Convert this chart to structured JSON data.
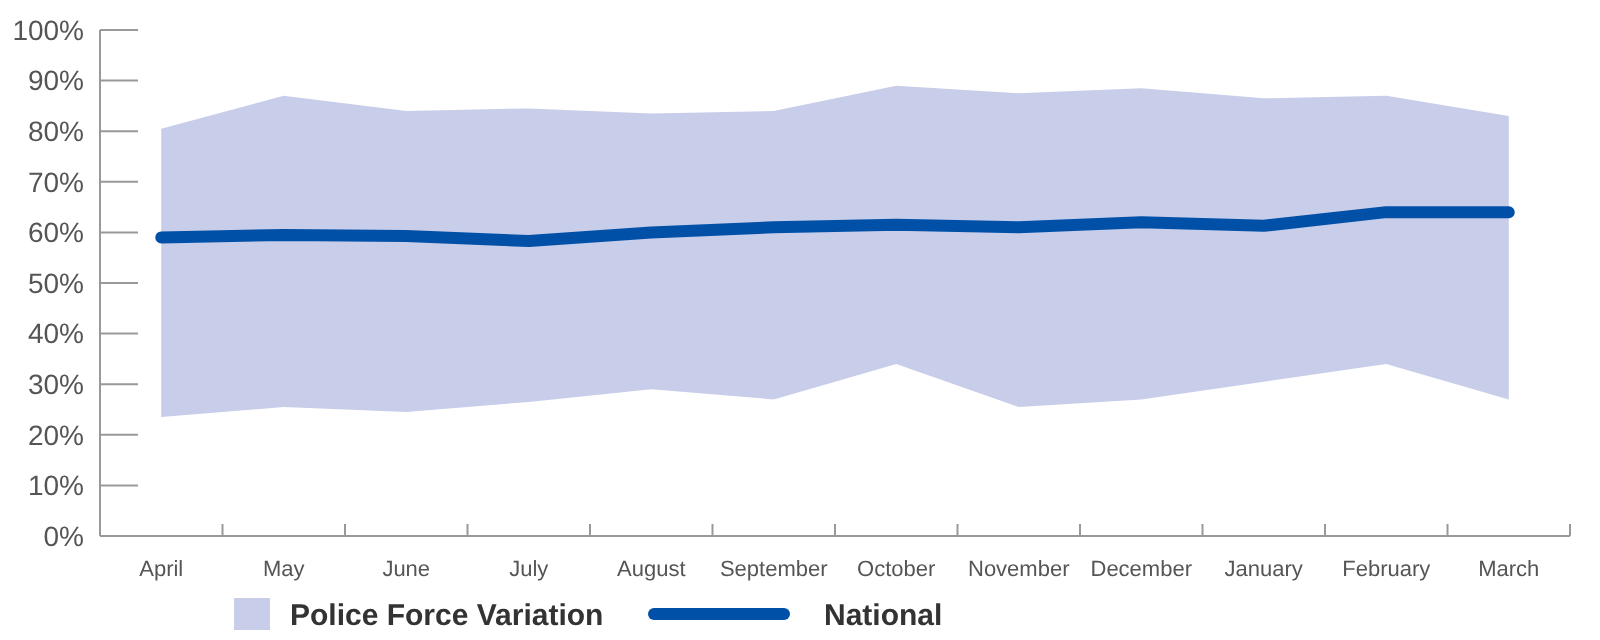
{
  "chart_data": {
    "type": "line",
    "categories": [
      "April",
      "May",
      "June",
      "July",
      "August",
      "September",
      "October",
      "November",
      "December",
      "January",
      "February",
      "March"
    ],
    "series": [
      {
        "name": "Police Force Variation",
        "type": "area",
        "color": "#c8cde9",
        "lower": [
          23.5,
          25.5,
          24.5,
          26.5,
          29,
          27,
          34,
          25.5,
          27,
          30.5,
          34,
          27
        ],
        "values": [
          null,
          null,
          null,
          null,
          null,
          null,
          null,
          null,
          null,
          null,
          null,
          null
        ],
        "upper": [
          80.5,
          87,
          84,
          84.5,
          83.5,
          84,
          89,
          87.5,
          88.5,
          86.5,
          87,
          83
        ]
      },
      {
        "name": "National",
        "color": "#0050a8",
        "values": [
          59,
          59.5,
          59.3,
          58.3,
          60,
          61,
          61.5,
          61,
          62,
          61.3,
          64,
          64
        ]
      }
    ],
    "ylim": [
      0,
      100
    ],
    "yticks": [
      {
        "value": 0,
        "label": "0%"
      },
      {
        "value": 10,
        "label": "10%"
      },
      {
        "value": 20,
        "label": "20%"
      },
      {
        "value": 30,
        "label": "30%"
      },
      {
        "value": 40,
        "label": "40%"
      },
      {
        "value": 50,
        "label": "50%"
      },
      {
        "value": 60,
        "label": "60%"
      },
      {
        "value": 70,
        "label": "70%"
      },
      {
        "value": 80,
        "label": "80%"
      },
      {
        "value": 90,
        "label": "90%"
      },
      {
        "value": 100,
        "label": "100%"
      }
    ],
    "grid": false,
    "legend": "bottom left",
    "marker": "none",
    "line_style": "solid"
  }
}
